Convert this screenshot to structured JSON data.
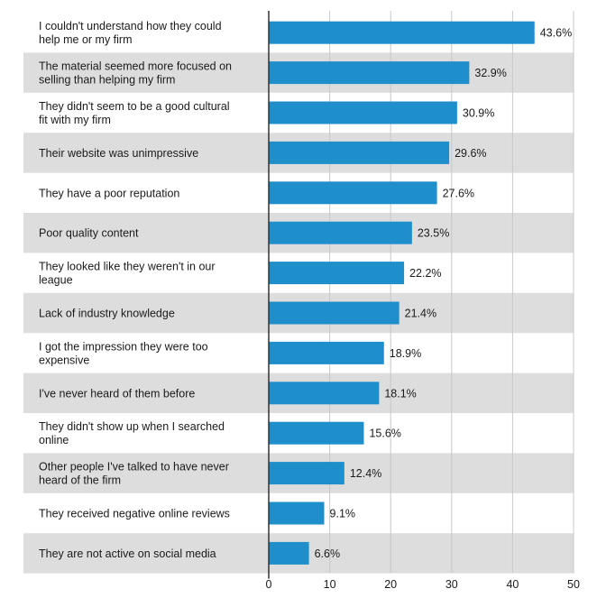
{
  "chart_data": {
    "type": "bar",
    "orientation": "horizontal",
    "categories": [
      [
        "I couldn't understand how they could",
        "help me or my firm"
      ],
      [
        "The material seemed more focused on",
        "selling than helping my firm"
      ],
      [
        "They didn't seem to be a good cultural",
        "fit with my firm"
      ],
      [
        "Their website was unimpressive"
      ],
      [
        "They have a poor reputation"
      ],
      [
        " Poor quality content"
      ],
      [
        "They looked like they weren't in our",
        "league"
      ],
      [
        "Lack of industry knowledge"
      ],
      [
        "I got the impression they were too",
        "expensive"
      ],
      [
        "I've never heard of them before"
      ],
      [
        "They didn't show up when I searched",
        "online"
      ],
      [
        "Other people I've talked to have never",
        "heard of the firm"
      ],
      [
        "They received negative online reviews"
      ],
      [
        "They are not active on social media"
      ]
    ],
    "values": [
      43.6,
      32.9,
      30.9,
      29.6,
      27.6,
      23.5,
      22.2,
      21.4,
      18.9,
      18.1,
      15.6,
      12.4,
      9.1,
      6.6
    ],
    "value_labels": [
      "43.6%",
      "32.9%",
      "30.9%",
      "29.6%",
      "27.6%",
      "23.5%",
      "22.2%",
      "21.4%",
      "18.9%",
      "18.1%",
      "15.6%",
      "12.4%",
      "9.1%",
      "6.6%"
    ],
    "xlim": [
      0,
      50
    ],
    "xticks": [
      0,
      10,
      20,
      30,
      40,
      50
    ],
    "grid": true,
    "title": "",
    "xlabel": "",
    "ylabel": "",
    "colors": {
      "bar": "#1f8fcc",
      "band_alt": "#dddddd",
      "grid": "#c8c8c8",
      "axis": "#333333"
    }
  }
}
